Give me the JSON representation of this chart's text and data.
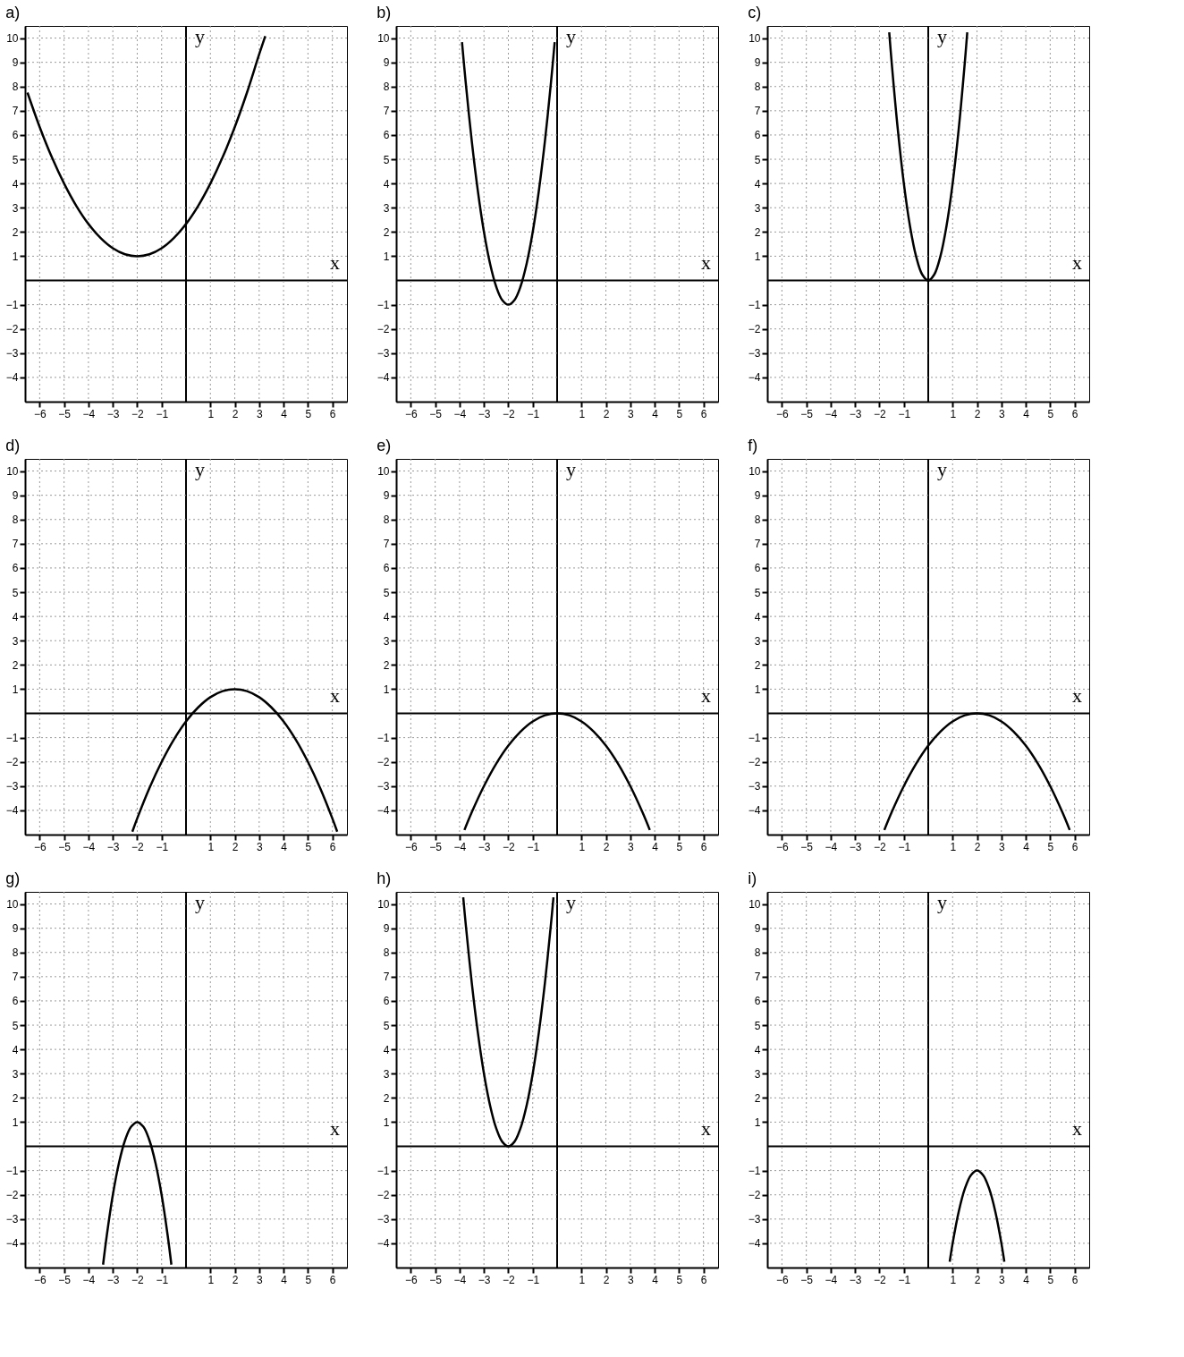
{
  "chart_data": [
    {
      "type": "line",
      "title": "a)",
      "xlabel": "x",
      "ylabel": "y",
      "color": "#000000",
      "grid": true,
      "xlim": [
        -6.6,
        6.6
      ],
      "ylim": [
        -5,
        10.5
      ],
      "xticks": [
        -6,
        -5,
        -4,
        -3,
        -2,
        -1,
        1,
        2,
        3,
        4,
        5,
        6
      ],
      "yticks": [
        -4,
        -3,
        -2,
        -1,
        1,
        2,
        3,
        4,
        5,
        6,
        7,
        8,
        9,
        10
      ],
      "x": [
        -6.5,
        -6,
        -5.5,
        -5,
        -4.5,
        -4,
        -3.5,
        -3,
        -2.5,
        -2,
        -1.5,
        -1,
        -0.5,
        0,
        0.5,
        1,
        1.5,
        2,
        2.5,
        3,
        3.25
      ],
      "values": [
        7.75,
        6.33,
        5.08,
        4,
        3.08,
        2.33,
        1.75,
        1.33,
        1.08,
        1,
        1.08,
        1.33,
        1.75,
        2.33,
        3.08,
        4,
        5.08,
        6.33,
        7.75,
        9.33,
        10.08
      ]
    },
    {
      "type": "line",
      "title": "b)",
      "xlabel": "x",
      "ylabel": "y",
      "color": "#000000",
      "grid": true,
      "xlim": [
        -6.6,
        6.6
      ],
      "ylim": [
        -5,
        10.5
      ],
      "xticks": [
        -6,
        -5,
        -4,
        -3,
        -2,
        -1,
        1,
        2,
        3,
        4,
        5,
        6
      ],
      "yticks": [
        -4,
        -3,
        -2,
        -1,
        1,
        2,
        3,
        4,
        5,
        6,
        7,
        8,
        9,
        10
      ],
      "x": [
        -3.9,
        -3.75,
        -3.5,
        -3.25,
        -3,
        -2.75,
        -2.5,
        -2.25,
        -2,
        -1.75,
        -1.5,
        -1.25,
        -1,
        -0.75,
        -0.5,
        -0.25,
        -0.1
      ],
      "values": [
        9.83,
        8.19,
        5.75,
        3.69,
        2,
        0.69,
        -0.25,
        -0.81,
        -1,
        -0.81,
        -0.25,
        0.69,
        2,
        3.69,
        5.75,
        8.19,
        9.83
      ]
    },
    {
      "type": "line",
      "title": "c)",
      "xlabel": "x",
      "ylabel": "y",
      "color": "#000000",
      "grid": true,
      "xlim": [
        -6.6,
        6.6
      ],
      "ylim": [
        -5,
        10.5
      ],
      "xticks": [
        -6,
        -5,
        -4,
        -3,
        -2,
        -1,
        1,
        2,
        3,
        4,
        5,
        6
      ],
      "yticks": [
        -4,
        -3,
        -2,
        -1,
        1,
        2,
        3,
        4,
        5,
        6,
        7,
        8,
        9,
        10
      ],
      "x": [
        -1.6,
        -1.5,
        -1.25,
        -1,
        -0.75,
        -0.5,
        -0.25,
        0,
        0.25,
        0.5,
        0.75,
        1,
        1.25,
        1.5,
        1.6
      ],
      "values": [
        10.24,
        9,
        6.25,
        4,
        2.25,
        1,
        0.25,
        0,
        0.25,
        1,
        2.25,
        4,
        6.25,
        9,
        10.24
      ]
    },
    {
      "type": "line",
      "title": "d)",
      "xlabel": "x",
      "ylabel": "y",
      "color": "#000000",
      "grid": true,
      "xlim": [
        -6.6,
        6.6
      ],
      "ylim": [
        -5,
        10.5
      ],
      "xticks": [
        -6,
        -5,
        -4,
        -3,
        -2,
        -1,
        1,
        2,
        3,
        4,
        5,
        6
      ],
      "yticks": [
        -4,
        -3,
        -2,
        -1,
        1,
        2,
        3,
        4,
        5,
        6,
        7,
        8,
        9,
        10
      ],
      "x": [
        -2.2,
        -2,
        -1.5,
        -1,
        -0.5,
        0,
        0.5,
        1,
        1.5,
        2,
        2.5,
        3,
        3.5,
        4,
        4.5,
        5,
        5.5,
        6,
        6.2
      ],
      "values": [
        -4.88,
        -4.33,
        -3.08,
        -2,
        -1.08,
        -0.33,
        0.25,
        0.67,
        0.92,
        1,
        0.92,
        0.67,
        0.25,
        -0.33,
        -1.08,
        -2,
        -3.08,
        -4.33,
        -4.88
      ]
    },
    {
      "type": "line",
      "title": "e)",
      "xlabel": "x",
      "ylabel": "y",
      "color": "#000000",
      "grid": true,
      "xlim": [
        -6.6,
        6.6
      ],
      "ylim": [
        -5,
        10.5
      ],
      "xticks": [
        -6,
        -5,
        -4,
        -3,
        -2,
        -1,
        1,
        2,
        3,
        4,
        5,
        6
      ],
      "yticks": [
        -4,
        -3,
        -2,
        -1,
        1,
        2,
        3,
        4,
        5,
        6,
        7,
        8,
        9,
        10
      ],
      "x": [
        -3.8,
        -3.5,
        -3,
        -2.5,
        -2,
        -1.5,
        -1,
        -0.5,
        0,
        0.5,
        1,
        1.5,
        2,
        2.5,
        3,
        3.5,
        3.8
      ],
      "values": [
        -4.81,
        -4.08,
        -3,
        -2.08,
        -1.33,
        -0.75,
        -0.33,
        -0.08,
        0,
        -0.08,
        -0.33,
        -0.75,
        -1.33,
        -2.08,
        -3,
        -4.08,
        -4.81
      ]
    },
    {
      "type": "line",
      "title": "f)",
      "xlabel": "x",
      "ylabel": "y",
      "color": "#000000",
      "grid": true,
      "xlim": [
        -6.6,
        6.6
      ],
      "ylim": [
        -5,
        10.5
      ],
      "xticks": [
        -6,
        -5,
        -4,
        -3,
        -2,
        -1,
        1,
        2,
        3,
        4,
        5,
        6
      ],
      "yticks": [
        -4,
        -3,
        -2,
        -1,
        1,
        2,
        3,
        4,
        5,
        6,
        7,
        8,
        9,
        10
      ],
      "x": [
        -1.8,
        -1.5,
        -1,
        -0.5,
        0,
        0.5,
        1,
        1.5,
        2,
        2.5,
        3,
        3.5,
        4,
        4.5,
        5,
        5.5,
        5.8
      ],
      "values": [
        -4.81,
        -4.08,
        -3,
        -2.08,
        -1.33,
        -0.75,
        -0.33,
        -0.08,
        0,
        -0.08,
        -0.33,
        -0.75,
        -1.33,
        -2.08,
        -3,
        -4.08,
        -4.81
      ]
    },
    {
      "type": "line",
      "title": "g)",
      "xlabel": "x",
      "ylabel": "y",
      "color": "#000000",
      "grid": true,
      "xlim": [
        -6.6,
        6.6
      ],
      "ylim": [
        -5,
        10.5
      ],
      "xticks": [
        -6,
        -5,
        -4,
        -3,
        -2,
        -1,
        1,
        2,
        3,
        4,
        5,
        6
      ],
      "yticks": [
        -4,
        -3,
        -2,
        -1,
        1,
        2,
        3,
        4,
        5,
        6,
        7,
        8,
        9,
        10
      ],
      "x": [
        -3.4,
        -3.25,
        -3,
        -2.75,
        -2.5,
        -2.25,
        -2,
        -1.75,
        -1.5,
        -1.25,
        -1,
        -0.75,
        -0.6
      ],
      "values": [
        -4.88,
        -3.69,
        -2,
        -0.69,
        0.25,
        0.81,
        1,
        0.81,
        0.25,
        -0.69,
        -2,
        -3.69,
        -4.88
      ]
    },
    {
      "type": "line",
      "title": "h)",
      "xlabel": "x",
      "ylabel": "y",
      "color": "#000000",
      "grid": true,
      "xlim": [
        -6.6,
        6.6
      ],
      "ylim": [
        -5,
        10.5
      ],
      "xticks": [
        -6,
        -5,
        -4,
        -3,
        -2,
        -1,
        1,
        2,
        3,
        4,
        5,
        6
      ],
      "yticks": [
        -4,
        -3,
        -2,
        -1,
        1,
        2,
        3,
        4,
        5,
        6,
        7,
        8,
        9,
        10
      ],
      "x": [
        -3.85,
        -3.75,
        -3.5,
        -3.25,
        -3,
        -2.75,
        -2.5,
        -2.25,
        -2,
        -1.75,
        -1.5,
        -1.25,
        -1,
        -0.75,
        -0.5,
        -0.25,
        -0.15
      ],
      "values": [
        10.27,
        9.19,
        6.75,
        4.69,
        3,
        1.69,
        0.75,
        0.19,
        0,
        0.19,
        0.75,
        1.69,
        3,
        4.69,
        6.75,
        9.19,
        10.27
      ]
    },
    {
      "type": "line",
      "title": "i)",
      "xlabel": "x",
      "ylabel": "y",
      "color": "#000000",
      "grid": true,
      "xlim": [
        -6.6,
        6.6
      ],
      "ylim": [
        -5,
        10.5
      ],
      "xticks": [
        -6,
        -5,
        -4,
        -3,
        -2,
        -1,
        1,
        2,
        3,
        4,
        5,
        6
      ],
      "yticks": [
        -4,
        -3,
        -2,
        -1,
        1,
        2,
        3,
        4,
        5,
        6,
        7,
        8,
        9,
        10
      ],
      "x": [
        0.88,
        1,
        1.25,
        1.5,
        1.75,
        2,
        2.25,
        2.5,
        2.75,
        3,
        3.12
      ],
      "values": [
        -4.76,
        -4,
        -2.69,
        -1.75,
        -1.19,
        -1,
        -1.19,
        -1.75,
        -2.69,
        -4,
        -4.76
      ]
    }
  ]
}
